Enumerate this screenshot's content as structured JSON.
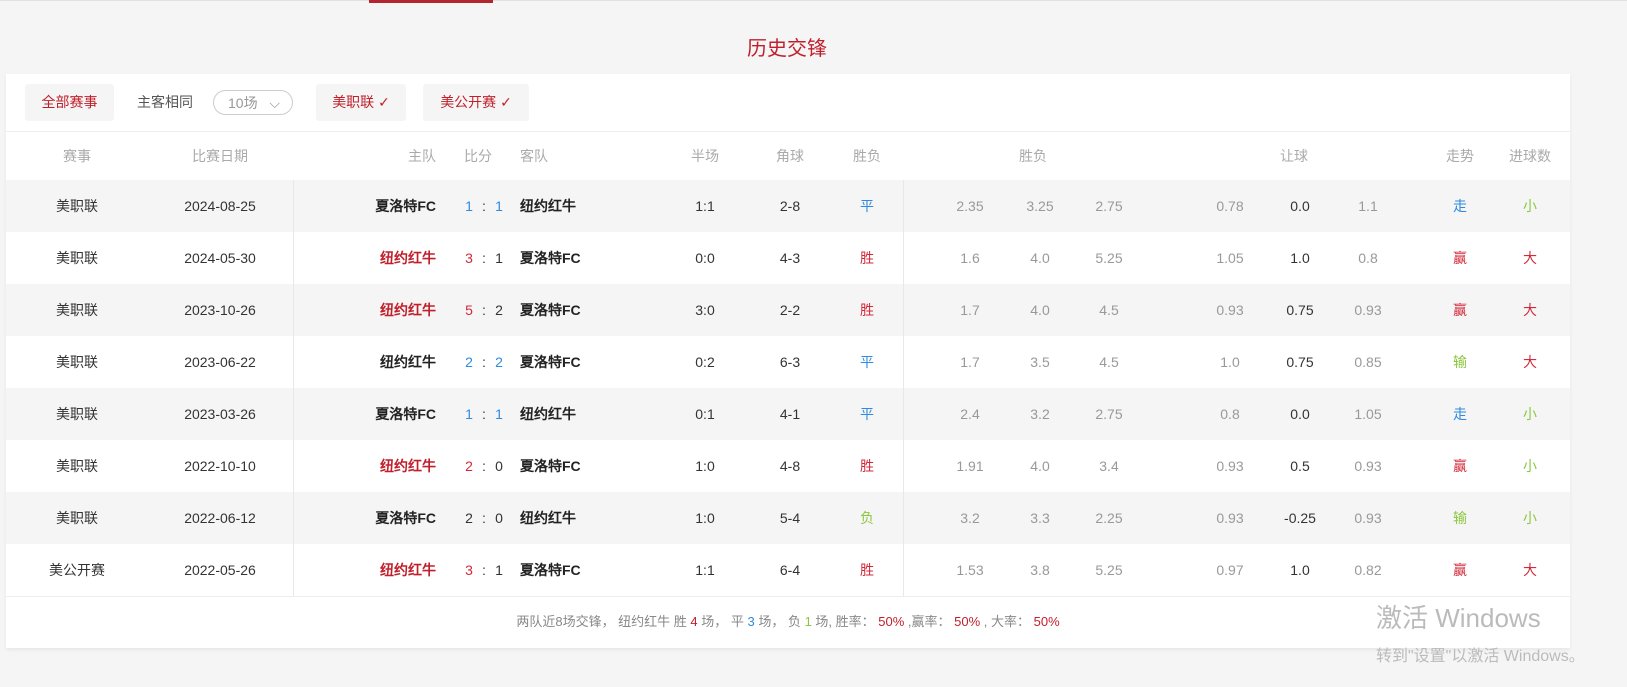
{
  "title": "历史交锋",
  "filters": {
    "all": "全部赛事",
    "same_home_away": "主客相同",
    "count": "10场",
    "league1": "美职联 ✓",
    "league2": "美公开赛 ✓"
  },
  "headers": {
    "event": "赛事",
    "date": "比赛日期",
    "home": "主队",
    "score": "比分",
    "away": "客队",
    "half": "半场",
    "corner": "角球",
    "result": "胜负",
    "odds": "胜负",
    "handicap": "让球",
    "trend": "走势",
    "goals": "进球数"
  },
  "colors": {
    "red": "#d12a3a",
    "blue": "#2f8ae0",
    "green": "#8cc63f",
    "accent": "#c0202c"
  },
  "rows": [
    {
      "event": "美职联",
      "date": "2024-08-25",
      "home": "夏洛特FC",
      "home_color": "dark",
      "s1": "1",
      "s1c": "blue",
      "s2": "1",
      "s2c": "blue",
      "away": "纽约红牛",
      "half": "1:1",
      "corner": "2-8",
      "result": "平",
      "rc": "blue",
      "o1": "2.35",
      "o2": "3.25",
      "o3": "2.75",
      "h1": "0.78",
      "h2": "0.0",
      "h3": "1.1",
      "trend": "走",
      "tc": "blue",
      "goals": "小",
      "gc": "green"
    },
    {
      "event": "美职联",
      "date": "2024-05-30",
      "home": "纽约红牛",
      "home_color": "red",
      "s1": "3",
      "s1c": "red",
      "s2": "1",
      "s2c": "dark",
      "away": "夏洛特FC",
      "half": "0:0",
      "corner": "4-3",
      "result": "胜",
      "rc": "red",
      "o1": "1.6",
      "o2": "4.0",
      "o3": "5.25",
      "h1": "1.05",
      "h2": "1.0",
      "h3": "0.8",
      "trend": "赢",
      "tc": "red",
      "goals": "大",
      "gc": "red"
    },
    {
      "event": "美职联",
      "date": "2023-10-26",
      "home": "纽约红牛",
      "home_color": "red",
      "s1": "5",
      "s1c": "red",
      "s2": "2",
      "s2c": "dark",
      "away": "夏洛特FC",
      "half": "3:0",
      "corner": "2-2",
      "result": "胜",
      "rc": "red",
      "o1": "1.7",
      "o2": "4.0",
      "o3": "4.5",
      "h1": "0.93",
      "h2": "0.75",
      "h3": "0.93",
      "trend": "赢",
      "tc": "red",
      "goals": "大",
      "gc": "red"
    },
    {
      "event": "美职联",
      "date": "2023-06-22",
      "home": "纽约红牛",
      "home_color": "dark",
      "s1": "2",
      "s1c": "blue",
      "s2": "2",
      "s2c": "blue",
      "away": "夏洛特FC",
      "half": "0:2",
      "corner": "6-3",
      "result": "平",
      "rc": "blue",
      "o1": "1.7",
      "o2": "3.5",
      "o3": "4.5",
      "h1": "1.0",
      "h2": "0.75",
      "h3": "0.85",
      "trend": "输",
      "tc": "green",
      "goals": "大",
      "gc": "red"
    },
    {
      "event": "美职联",
      "date": "2023-03-26",
      "home": "夏洛特FC",
      "home_color": "dark",
      "s1": "1",
      "s1c": "blue",
      "s2": "1",
      "s2c": "blue",
      "away": "纽约红牛",
      "half": "0:1",
      "corner": "4-1",
      "result": "平",
      "rc": "blue",
      "o1": "2.4",
      "o2": "3.2",
      "o3": "2.75",
      "h1": "0.8",
      "h2": "0.0",
      "h3": "1.05",
      "trend": "走",
      "tc": "blue",
      "goals": "小",
      "gc": "green"
    },
    {
      "event": "美职联",
      "date": "2022-10-10",
      "home": "纽约红牛",
      "home_color": "red",
      "s1": "2",
      "s1c": "red",
      "s2": "0",
      "s2c": "dark",
      "away": "夏洛特FC",
      "half": "1:0",
      "corner": "4-8",
      "result": "胜",
      "rc": "red",
      "o1": "1.91",
      "o2": "4.0",
      "o3": "3.4",
      "h1": "0.93",
      "h2": "0.5",
      "h3": "0.93",
      "trend": "赢",
      "tc": "red",
      "goals": "小",
      "gc": "green"
    },
    {
      "event": "美职联",
      "date": "2022-06-12",
      "home": "夏洛特FC",
      "home_color": "dark",
      "s1": "2",
      "s1c": "dark",
      "s2": "0",
      "s2c": "dark",
      "away": "纽约红牛",
      "half": "1:0",
      "corner": "5-4",
      "result": "负",
      "rc": "green",
      "o1": "3.2",
      "o2": "3.3",
      "o3": "2.25",
      "h1": "0.93",
      "h2": "-0.25",
      "h3": "0.93",
      "trend": "输",
      "tc": "green",
      "goals": "小",
      "gc": "green"
    },
    {
      "event": "美公开赛",
      "date": "2022-05-26",
      "home": "纽约红牛",
      "home_color": "red",
      "s1": "3",
      "s1c": "red",
      "s2": "1",
      "s2c": "dark",
      "away": "夏洛特FC",
      "half": "1:1",
      "corner": "6-4",
      "result": "胜",
      "rc": "red",
      "o1": "1.53",
      "o2": "3.8",
      "o3": "5.25",
      "h1": "0.97",
      "h2": "1.0",
      "h3": "0.82",
      "trend": "赢",
      "tc": "red",
      "goals": "大",
      "gc": "red"
    }
  ],
  "summary": {
    "p1": "两队近8场交锋，  纽约红牛 胜 ",
    "win": "4",
    "p2": " 场，  平 ",
    "draw": "3",
    "p3": " 场，  负 ",
    "loss": "1",
    "p4": " 场, 胜率：  ",
    "win_rate": "50%",
    "p5": " ,赢率：  ",
    "cover_rate": "50%",
    "p6": " , 大率：  ",
    "over_rate": "50%"
  },
  "watermark": {
    "line1": "激活 Windows",
    "line2": "转到\"设置\"以激活 Windows。"
  }
}
